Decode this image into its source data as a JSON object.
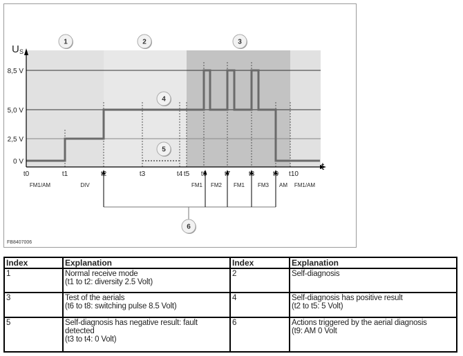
{
  "diagram": {
    "y_axis_label": "U",
    "y_axis_sub": "S",
    "x_axis_label": "t",
    "y_ticks": [
      {
        "label": "8,5 V",
        "v": 8.5
      },
      {
        "label": "5,0 V",
        "v": 5.0
      },
      {
        "label": "2,5 V",
        "v": 2.5
      },
      {
        "label": "0 V",
        "v": 0
      }
    ],
    "time_labels": [
      "t0",
      "t1",
      "t2",
      "t3",
      "t4",
      "t5",
      "t6",
      "t7",
      "t8",
      "t9",
      "t10"
    ],
    "mode_labels": [
      "FM1/AM",
      "DIV",
      "FM1",
      "FM2",
      "FM1",
      "FM3",
      "AM",
      "FM1/AM"
    ],
    "callouts": [
      "1",
      "2",
      "3",
      "4",
      "5",
      "6"
    ],
    "code": "FB8407006"
  },
  "table": {
    "headers": [
      "Index",
      "Explanation",
      "Index",
      "Explanation"
    ],
    "rows": [
      {
        "i1": "1",
        "e1": "Normal receive mode\n(t1 to t2: diversity 2.5 Volt)",
        "i2": "2",
        "e2": "Self-diagnosis"
      },
      {
        "i1": "3",
        "e1": "Test of the aerials\n(t6 to t8: switching pulse 8.5 Volt)",
        "i2": "4",
        "e2": "Self-diagnosis has positive result\n(t2 to t5: 5 Volt)"
      },
      {
        "i1": "5",
        "e1": "Self-diagnosis has negative result: fault detected\n(t3 to t4: 0 Volt)",
        "i2": "6",
        "e2": "Actions triggered by the aerial diagnosis\n(t9: AM 0 Volt"
      }
    ]
  }
}
